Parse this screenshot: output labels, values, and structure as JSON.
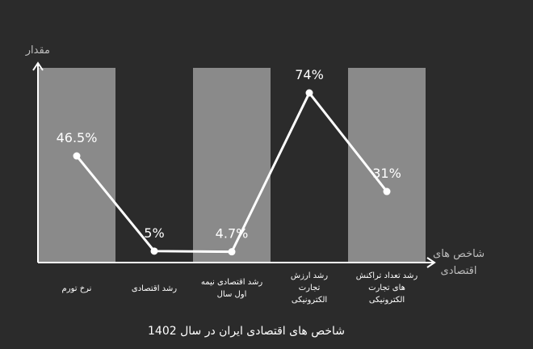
{
  "chart_data": {
    "type": "line",
    "title": "شاخص های اقتصادی ایران در سال 1402",
    "ylabel": "مقدار",
    "xlabel": [
      "شاخص های",
      "اقتصادی"
    ],
    "categories": [
      [
        "نرخ تورم"
      ],
      [
        "رشد اقتصادی"
      ],
      [
        "رشد اقتصادی نیمه",
        "اول سال"
      ],
      [
        "رشد ارزش",
        "تجارت",
        "الکترونیکی"
      ],
      [
        "رشد تعداد تراکنش",
        "های تجارت",
        "الکترونیکی"
      ]
    ],
    "values": [
      46.5,
      5,
      4.7,
      74,
      31
    ],
    "data_labels": [
      "46.5%",
      "5%",
      "4.7%",
      "74%",
      "31%"
    ],
    "ylim": [
      0,
      80
    ],
    "grid": false,
    "colors": {
      "background": "#2b2b2b",
      "band": "#8a8a8a",
      "line": "#ffffff",
      "axis": "#ffffff"
    }
  }
}
